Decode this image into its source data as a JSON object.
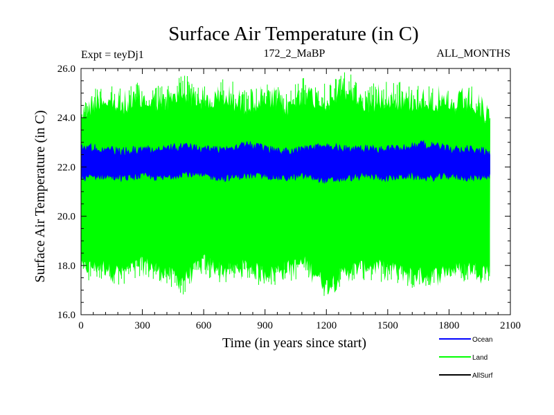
{
  "chart_data": {
    "type": "line",
    "title": "Surface Air Temperature (in C)",
    "annotations": {
      "left": "Expt = teyDj1",
      "center": "172_2_MaBP",
      "right": "ALL_MONTHS"
    },
    "xlabel": "Time (in years since start)",
    "ylabel": "Surface Air Temperature (in C)",
    "xlim": [
      0,
      2100
    ],
    "ylim": [
      16.0,
      26.0
    ],
    "x_ticks": [
      0,
      300,
      600,
      900,
      1200,
      1500,
      1800,
      2100
    ],
    "x_tick_labels": [
      "0",
      "300",
      "600",
      "900",
      "1200",
      "1500",
      "1800",
      "2100"
    ],
    "y_ticks": [
      16.0,
      18.0,
      20.0,
      22.0,
      24.0,
      26.0
    ],
    "y_tick_labels": [
      "16.0",
      "18.0",
      "20.0",
      "22.0",
      "24.0",
      "26.0"
    ],
    "legend_position": "bottom-right",
    "series": [
      {
        "name": "Land",
        "color": "#00ff00",
        "x_range": [
          0,
          2000
        ],
        "min_envelope": [
          17.3,
          17.4,
          17.1,
          17.5,
          17.2,
          16.8,
          17.6,
          17.2,
          17.4,
          17.1,
          17.3,
          17.5,
          16.6,
          17.2,
          17.4,
          17.3,
          17.1,
          17.0,
          17.2,
          17.3,
          17.2
        ],
        "max_envelope": [
          24.9,
          25.6,
          25.2,
          25.5,
          25.3,
          25.8,
          25.4,
          25.6,
          25.3,
          25.5,
          25.2,
          25.7,
          25.4,
          25.9,
          25.3,
          25.6,
          25.4,
          25.5,
          25.2,
          25.4,
          24.7
        ]
      },
      {
        "name": "Ocean",
        "color": "#0000ff",
        "x_range": [
          0,
          2000
        ],
        "min_envelope": [
          21.4,
          21.5,
          21.4,
          21.5,
          21.4,
          21.6,
          21.5,
          21.4,
          21.5,
          21.5,
          21.4,
          21.5,
          21.3,
          21.4,
          21.5,
          21.4,
          21.5,
          21.4,
          21.5,
          21.4,
          21.5
        ],
        "max_envelope": [
          23.0,
          22.9,
          22.8,
          22.9,
          22.9,
          23.0,
          22.9,
          22.9,
          23.1,
          22.9,
          22.8,
          22.9,
          23.0,
          22.9,
          22.9,
          22.9,
          23.0,
          23.1,
          22.9,
          22.9,
          22.8
        ]
      },
      {
        "name": "AllSurf",
        "color": "#000000",
        "x_range": [
          0,
          2000
        ],
        "min_envelope": [],
        "max_envelope": []
      }
    ],
    "legend": [
      "Ocean",
      "Land",
      "AllSurf"
    ]
  }
}
